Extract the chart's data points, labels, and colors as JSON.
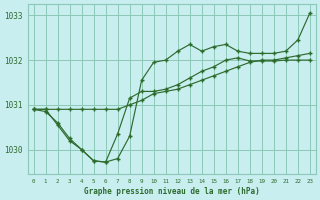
{
  "title": "Graphe pression niveau de la mer (hPa)",
  "bg_color": "#c8eef0",
  "grid_color": "#8ec8b8",
  "line_color": "#2d6b2d",
  "xlim": [
    -0.5,
    23.5
  ],
  "ylim": [
    1029.45,
    1033.25
  ],
  "yticks": [
    1030,
    1031,
    1032,
    1033
  ],
  "xticks": [
    0,
    1,
    2,
    3,
    4,
    5,
    6,
    7,
    8,
    9,
    10,
    11,
    12,
    13,
    14,
    15,
    16,
    17,
    18,
    19,
    20,
    21,
    22,
    23
  ],
  "line1_x": [
    0,
    1,
    2,
    3,
    4,
    5,
    6,
    7,
    8,
    9,
    10,
    11,
    12,
    13,
    14,
    15,
    16,
    17,
    18,
    19,
    20,
    21,
    22,
    23
  ],
  "line1_y": [
    1030.9,
    1030.9,
    1030.9,
    1030.9,
    1030.9,
    1030.9,
    1030.9,
    1030.9,
    1031.0,
    1031.1,
    1031.25,
    1031.3,
    1031.35,
    1031.45,
    1031.55,
    1031.65,
    1031.75,
    1031.85,
    1031.95,
    1032.0,
    1032.0,
    1032.05,
    1032.1,
    1032.15
  ],
  "line2_x": [
    0,
    1,
    2,
    3,
    4,
    5,
    6,
    7,
    8,
    9,
    10,
    11,
    12,
    13,
    14,
    15,
    16,
    17,
    18,
    19,
    20,
    21,
    22,
    23
  ],
  "line2_y": [
    1030.9,
    1030.85,
    1030.6,
    1030.25,
    1030.0,
    1029.75,
    1029.72,
    1030.35,
    1031.15,
    1031.3,
    1031.3,
    1031.35,
    1031.45,
    1031.6,
    1031.75,
    1031.85,
    1032.0,
    1032.05,
    1031.98,
    1031.98,
    1031.98,
    1032.0,
    1032.0,
    1032.0
  ],
  "line3_x": [
    0,
    1,
    2,
    3,
    4,
    5,
    6,
    7,
    8,
    9,
    10,
    11,
    12,
    13,
    14,
    15,
    16,
    17,
    18,
    19,
    20,
    21,
    22,
    23
  ],
  "line3_y": [
    1030.9,
    1030.9,
    1030.55,
    1030.2,
    1030.0,
    1029.75,
    1029.72,
    1029.8,
    1030.3,
    1031.55,
    1031.95,
    1032.0,
    1032.2,
    1032.35,
    1032.2,
    1032.3,
    1032.35,
    1032.2,
    1032.15,
    1032.15,
    1032.15,
    1032.2,
    1032.45,
    1033.05
  ]
}
